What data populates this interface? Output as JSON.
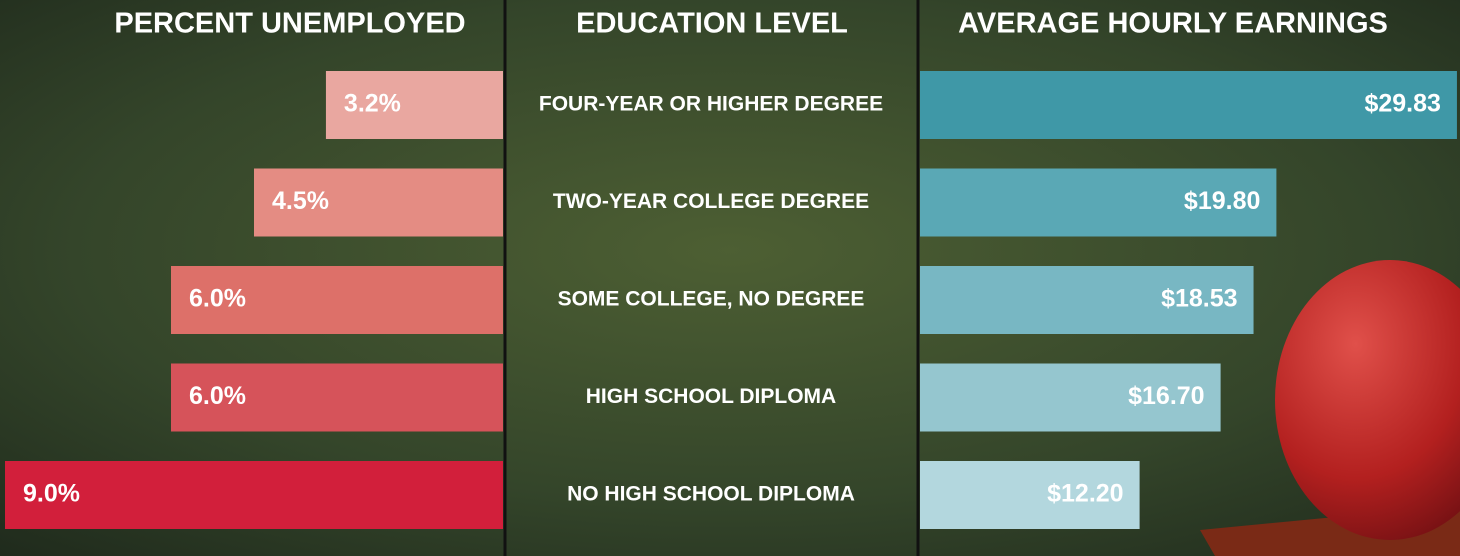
{
  "chart_data": [
    {
      "type": "bar",
      "orientation": "horizontal",
      "direction": "left",
      "title": "PERCENT UNEMPLOYED",
      "categories_title": "EDUCATION LEVEL",
      "categories": [
        "FOUR-YEAR OR HIGHER DEGREE",
        "TWO-YEAR COLLEGE DEGREE",
        "SOME COLLEGE, NO DEGREE",
        "HIGH SCHOOL DIPLOMA",
        "NO HIGH SCHOOL DIPLOMA"
      ],
      "values": [
        3.2,
        4.5,
        6.0,
        6.0,
        9.0
      ],
      "value_labels": [
        "3.2%",
        "4.5%",
        "6.0%",
        "6.0%",
        "9.0%"
      ],
      "colors": [
        "#e9a7a0",
        "#e48c83",
        "#dd7069",
        "#d6535a",
        "#d21f3b"
      ],
      "xlim": [
        0,
        9
      ]
    },
    {
      "type": "bar",
      "orientation": "horizontal",
      "direction": "right",
      "title": "AVERAGE HOURLY EARNINGS",
      "values": [
        29.83,
        19.8,
        18.53,
        16.7,
        12.2
      ],
      "value_labels": [
        "$29.83",
        "$19.80",
        "$18.53",
        "$16.70",
        "$12.20"
      ],
      "colors": [
        "#3f98a7",
        "#5aa8b5",
        "#78b7c3",
        "#95c6cf",
        "#b3d7de"
      ],
      "xlim": [
        0,
        30
      ]
    }
  ]
}
